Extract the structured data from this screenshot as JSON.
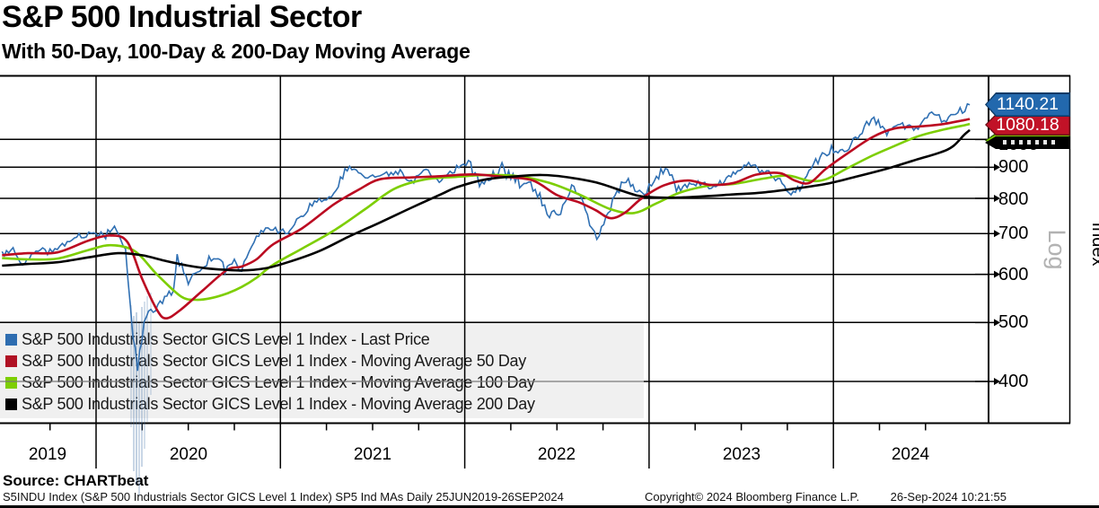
{
  "header": {
    "title": "S&P 500 Industrial Sector",
    "subtitle": "With 50-Day, 100-Day & 200-Day Moving Average"
  },
  "axis": {
    "y_label": "Index",
    "scale_label": "Log",
    "y_ticks": [
      "1000",
      "900",
      "800",
      "700",
      "600",
      "500",
      "400"
    ],
    "x_ticks": [
      "2019",
      "2020",
      "2021",
      "2022",
      "2023",
      "2024"
    ]
  },
  "price_tags": [
    {
      "series": "last-price",
      "value": "1140.21",
      "fill": "#2268ad",
      "edge": "#0b3a66"
    },
    {
      "series": "moving-average-50-day",
      "value": "1080.18",
      "fill": "#c11227",
      "edge": "#6b0a14"
    },
    {
      "series": "moving-average-100-day",
      "value": "",
      "fill": "#7dce02",
      "edge": "#2d5a00"
    },
    {
      "series": "moving-average-200-day",
      "value": "",
      "fill": "#000000",
      "edge": "#000000"
    }
  ],
  "legend": {
    "items": [
      {
        "label": "S&P 500 Industrials Sector GICS Level 1 Index - Last Price",
        "color": "#2e6db0"
      },
      {
        "label": "S&P 500 Industrials Sector GICS Level 1 Index - Moving Average 50 Day",
        "color": "#b01224"
      },
      {
        "label": "S&P 500 Industrials Sector GICS Level 1 Index - Moving Average 100 Day",
        "color": "#7dce02"
      },
      {
        "label": "S&P 500 Industrials Sector GICS Level 1 Index - Moving Average 200 Day",
        "color": "#000000"
      }
    ]
  },
  "source_line": "Source: CHARTbeat",
  "footer": {
    "left": "S5INDU Index (S&P 500 Industrials Sector GICS Level 1 Index) SP5 Ind MAs  Daily 25JUN2019-26SEP2024",
    "center": "Copyright© 2024 Bloomberg Finance L.P.",
    "right": "26-Sep-2024 10:21:55"
  },
  "chart_data": {
    "type": "line",
    "title": "S&P 500 Industrial Sector",
    "subtitle": "With 50-Day, 100-Day & 200-Day Moving Average",
    "x_axis": {
      "ticks": [
        "2019",
        "2020",
        "2021",
        "2022",
        "2023",
        "2024"
      ],
      "start": 2019.48,
      "end": 2024.74,
      "minor_tick": "quarterly"
    },
    "y_axis": {
      "label": "Index",
      "scale": "log",
      "ticks": [
        400,
        500,
        600,
        700,
        800,
        900,
        1000
      ],
      "range": [
        330,
        1270
      ],
      "side": "right"
    },
    "grid": true,
    "legend_position": "bottom-left",
    "series": [
      {
        "name": "S&P 500 Industrials Sector GICS Level 1 Index - Last Price",
        "color": "#3070b3",
        "last_value": 1140.21,
        "points": [
          [
            2019.49,
            648
          ],
          [
            2019.55,
            660
          ],
          [
            2019.6,
            618
          ],
          [
            2019.65,
            645
          ],
          [
            2019.71,
            660
          ],
          [
            2019.75,
            650
          ],
          [
            2019.79,
            663
          ],
          [
            2019.83,
            672
          ],
          [
            2019.87,
            688
          ],
          [
            2019.92,
            695
          ],
          [
            2019.96,
            700
          ],
          [
            2020.04,
            692
          ],
          [
            2020.1,
            710
          ],
          [
            2020.16,
            650
          ],
          [
            2020.2,
            480
          ],
          [
            2020.225,
            419
          ],
          [
            2020.26,
            500
          ],
          [
            2020.31,
            525
          ],
          [
            2020.36,
            545
          ],
          [
            2020.42,
            560
          ],
          [
            2020.44,
            640
          ],
          [
            2020.5,
            580
          ],
          [
            2020.55,
            605
          ],
          [
            2020.6,
            630
          ],
          [
            2020.65,
            640
          ],
          [
            2020.7,
            612
          ],
          [
            2020.75,
            630
          ],
          [
            2020.79,
            602
          ],
          [
            2020.83,
            655
          ],
          [
            2020.87,
            696
          ],
          [
            2020.92,
            710
          ],
          [
            2020.96,
            715
          ],
          [
            2021.04,
            702
          ],
          [
            2021.1,
            740
          ],
          [
            2021.16,
            775
          ],
          [
            2021.21,
            795
          ],
          [
            2021.29,
            815
          ],
          [
            2021.35,
            890
          ],
          [
            2021.4,
            900
          ],
          [
            2021.46,
            862
          ],
          [
            2021.54,
            872
          ],
          [
            2021.6,
            880
          ],
          [
            2021.65,
            885
          ],
          [
            2021.71,
            848
          ],
          [
            2021.79,
            897
          ],
          [
            2021.85,
            852
          ],
          [
            2021.92,
            880
          ],
          [
            2021.98,
            900
          ],
          [
            2022.02,
            912
          ],
          [
            2022.08,
            852
          ],
          [
            2022.13,
            868
          ],
          [
            2022.19,
            890
          ],
          [
            2022.25,
            872
          ],
          [
            2022.31,
            838
          ],
          [
            2022.37,
            845
          ],
          [
            2022.42,
            790
          ],
          [
            2022.46,
            742
          ],
          [
            2022.52,
            765
          ],
          [
            2022.58,
            832
          ],
          [
            2022.63,
            808
          ],
          [
            2022.69,
            712
          ],
          [
            2022.73,
            698
          ],
          [
            2022.79,
            772
          ],
          [
            2022.85,
            838
          ],
          [
            2022.9,
            852
          ],
          [
            2022.96,
            808
          ],
          [
            2023.04,
            868
          ],
          [
            2023.1,
            892
          ],
          [
            2023.16,
            828
          ],
          [
            2023.23,
            850
          ],
          [
            2023.29,
            848
          ],
          [
            2023.35,
            832
          ],
          [
            2023.42,
            862
          ],
          [
            2023.48,
            892
          ],
          [
            2023.54,
            912
          ],
          [
            2023.6,
            890
          ],
          [
            2023.65,
            872
          ],
          [
            2023.71,
            852
          ],
          [
            2023.77,
            812
          ],
          [
            2023.83,
            848
          ],
          [
            2023.88,
            892
          ],
          [
            2023.94,
            940
          ],
          [
            2023.99,
            962
          ],
          [
            2024.06,
            958
          ],
          [
            2024.12,
            1000
          ],
          [
            2024.18,
            1062
          ],
          [
            2024.22,
            1078
          ],
          [
            2024.29,
            1028
          ],
          [
            2024.35,
            1068
          ],
          [
            2024.4,
            1048
          ],
          [
            2024.46,
            1042
          ],
          [
            2024.52,
            1098
          ],
          [
            2024.56,
            1108
          ],
          [
            2024.6,
            1062
          ],
          [
            2024.65,
            1098
          ],
          [
            2024.7,
            1118
          ],
          [
            2024.74,
            1140.21
          ]
        ]
      },
      {
        "name": "S&P 500 Industrials Sector GICS Level 1 Index - Moving Average 50 Day",
        "color": "#bb0a21",
        "last_value": 1080.18,
        "points": [
          [
            2019.49,
            645
          ],
          [
            2019.63,
            650
          ],
          [
            2019.79,
            652
          ],
          [
            2019.96,
            682
          ],
          [
            2020.08,
            695
          ],
          [
            2020.17,
            678
          ],
          [
            2020.25,
            590
          ],
          [
            2020.33,
            525
          ],
          [
            2020.38,
            508
          ],
          [
            2020.46,
            525
          ],
          [
            2020.58,
            565
          ],
          [
            2020.71,
            610
          ],
          [
            2020.79,
            618
          ],
          [
            2020.87,
            635
          ],
          [
            2020.96,
            672
          ],
          [
            2021.12,
            715
          ],
          [
            2021.29,
            782
          ],
          [
            2021.42,
            825
          ],
          [
            2021.54,
            860
          ],
          [
            2021.71,
            866
          ],
          [
            2021.87,
            870
          ],
          [
            2022.04,
            876
          ],
          [
            2022.21,
            868
          ],
          [
            2022.37,
            856
          ],
          [
            2022.5,
            810
          ],
          [
            2022.62,
            788
          ],
          [
            2022.71,
            765
          ],
          [
            2022.79,
            742
          ],
          [
            2022.87,
            758
          ],
          [
            2022.96,
            800
          ],
          [
            2023.08,
            840
          ],
          [
            2023.21,
            856
          ],
          [
            2023.33,
            842
          ],
          [
            2023.46,
            848
          ],
          [
            2023.58,
            875
          ],
          [
            2023.71,
            880
          ],
          [
            2023.79,
            856
          ],
          [
            2023.87,
            848
          ],
          [
            2023.96,
            895
          ],
          [
            2024.08,
            950
          ],
          [
            2024.21,
            1008
          ],
          [
            2024.33,
            1042
          ],
          [
            2024.46,
            1050
          ],
          [
            2024.58,
            1058
          ],
          [
            2024.71,
            1076
          ],
          [
            2024.74,
            1080.18
          ]
        ]
      },
      {
        "name": "S&P 500 Industrials Sector GICS Level 1 Index - Moving Average 100 Day",
        "color": "#7dce02",
        "last_value": 1060,
        "points": [
          [
            2019.49,
            638
          ],
          [
            2019.63,
            635
          ],
          [
            2019.79,
            637
          ],
          [
            2019.96,
            658
          ],
          [
            2020.08,
            670
          ],
          [
            2020.21,
            655
          ],
          [
            2020.33,
            600
          ],
          [
            2020.46,
            552
          ],
          [
            2020.54,
            545
          ],
          [
            2020.62,
            548
          ],
          [
            2020.71,
            558
          ],
          [
            2020.79,
            572
          ],
          [
            2020.87,
            592
          ],
          [
            2020.96,
            622
          ],
          [
            2021.12,
            662
          ],
          [
            2021.29,
            708
          ],
          [
            2021.46,
            768
          ],
          [
            2021.62,
            830
          ],
          [
            2021.79,
            860
          ],
          [
            2021.96,
            868
          ],
          [
            2022.12,
            874
          ],
          [
            2022.29,
            870
          ],
          [
            2022.46,
            848
          ],
          [
            2022.62,
            812
          ],
          [
            2022.79,
            768
          ],
          [
            2022.92,
            757
          ],
          [
            2023.04,
            785
          ],
          [
            2023.17,
            818
          ],
          [
            2023.33,
            840
          ],
          [
            2023.46,
            845
          ],
          [
            2023.62,
            862
          ],
          [
            2023.75,
            872
          ],
          [
            2023.87,
            855
          ],
          [
            2023.96,
            860
          ],
          [
            2024.08,
            898
          ],
          [
            2024.21,
            940
          ],
          [
            2024.33,
            975
          ],
          [
            2024.46,
            1012
          ],
          [
            2024.58,
            1035
          ],
          [
            2024.71,
            1055
          ],
          [
            2024.74,
            1060
          ]
        ]
      },
      {
        "name": "S&P 500 Industrials Sector GICS Level 1 Index - Moving Average 200 Day",
        "color": "#000000",
        "last_value": 1036,
        "points": [
          [
            2019.49,
            620
          ],
          [
            2019.63,
            624
          ],
          [
            2019.79,
            628
          ],
          [
            2019.96,
            640
          ],
          [
            2020.12,
            650
          ],
          [
            2020.25,
            645
          ],
          [
            2020.37,
            632
          ],
          [
            2020.5,
            620
          ],
          [
            2020.62,
            613
          ],
          [
            2020.79,
            609
          ],
          [
            2020.92,
            614
          ],
          [
            2021.04,
            628
          ],
          [
            2021.21,
            655
          ],
          [
            2021.37,
            692
          ],
          [
            2021.54,
            730
          ],
          [
            2021.71,
            772
          ],
          [
            2021.87,
            812
          ],
          [
            2021.96,
            835
          ],
          [
            2022.12,
            860
          ],
          [
            2022.29,
            870
          ],
          [
            2022.42,
            874
          ],
          [
            2022.54,
            868
          ],
          [
            2022.71,
            850
          ],
          [
            2022.87,
            820
          ],
          [
            2022.96,
            806
          ],
          [
            2023.12,
            802
          ],
          [
            2023.29,
            806
          ],
          [
            2023.46,
            812
          ],
          [
            2023.62,
            818
          ],
          [
            2023.79,
            830
          ],
          [
            2023.96,
            845
          ],
          [
            2024.12,
            868
          ],
          [
            2024.29,
            895
          ],
          [
            2024.46,
            928
          ],
          [
            2024.58,
            952
          ],
          [
            2024.65,
            975
          ],
          [
            2024.71,
            1018
          ],
          [
            2024.74,
            1036
          ]
        ]
      }
    ]
  }
}
